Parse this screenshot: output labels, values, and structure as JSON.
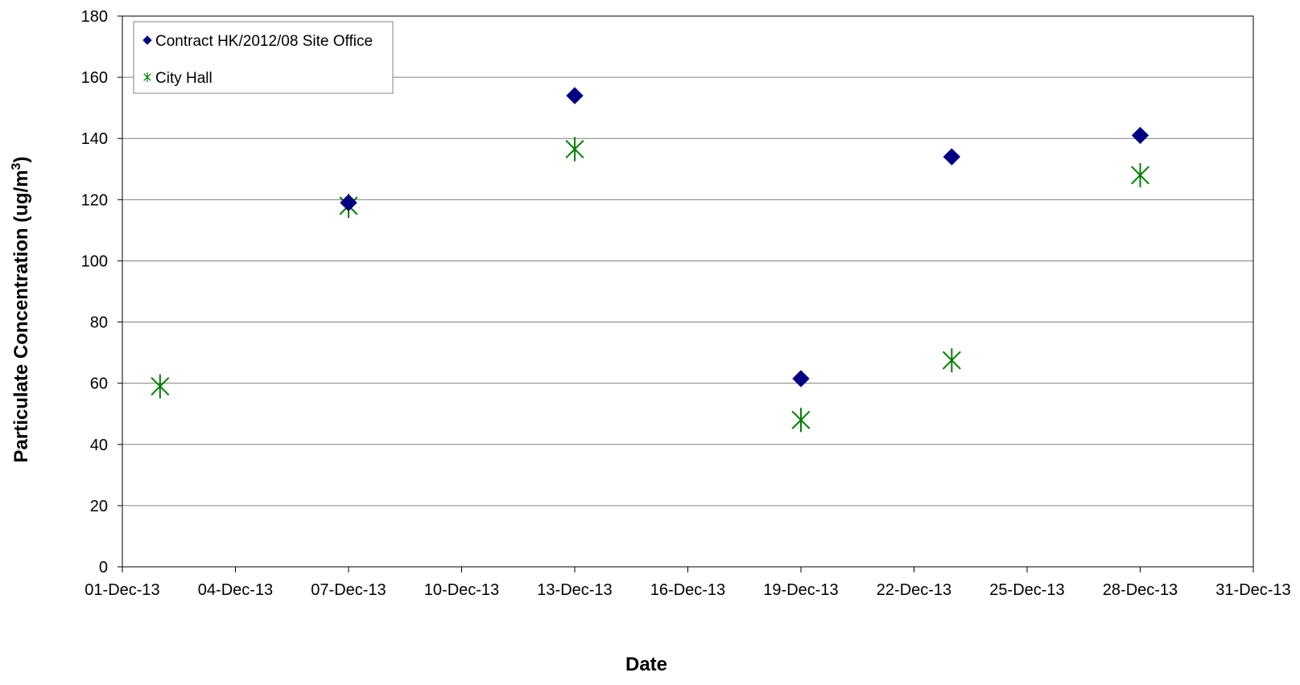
{
  "chart_data": {
    "type": "scatter",
    "title": "",
    "xlabel": "Date",
    "ylabel_main": "Particulate Concentration (ug/m",
    "ylabel_sup": "3",
    "ylabel_close": ")",
    "xlim": [
      "01-Dec-13",
      "31-Dec-13"
    ],
    "ylim": [
      0,
      180
    ],
    "x_ticks": [
      "01-Dec-13",
      "04-Dec-13",
      "07-Dec-13",
      "10-Dec-13",
      "13-Dec-13",
      "16-Dec-13",
      "19-Dec-13",
      "22-Dec-13",
      "25-Dec-13",
      "28-Dec-13",
      "31-Dec-13"
    ],
    "y_ticks": [
      0,
      20,
      40,
      60,
      80,
      100,
      120,
      140,
      160,
      180
    ],
    "grid": "horizontal",
    "legend_position": "top-left",
    "series": [
      {
        "name": "Contract HK/2012/08 Site Office",
        "marker": "diamond",
        "color": "#000080",
        "points": [
          {
            "x": "07-Dec-13",
            "y": 119
          },
          {
            "x": "13-Dec-13",
            "y": 154
          },
          {
            "x": "19-Dec-13",
            "y": 61.5
          },
          {
            "x": "23-Dec-13",
            "y": 134
          },
          {
            "x": "28-Dec-13",
            "y": 141
          }
        ]
      },
      {
        "name": "City Hall",
        "marker": "star",
        "color": "#008000",
        "points": [
          {
            "x": "02-Dec-13",
            "y": 59
          },
          {
            "x": "07-Dec-13",
            "y": 118
          },
          {
            "x": "13-Dec-13",
            "y": 136.5
          },
          {
            "x": "19-Dec-13",
            "y": 48
          },
          {
            "x": "23-Dec-13",
            "y": 67.5
          },
          {
            "x": "28-Dec-13",
            "y": 128
          }
        ]
      }
    ]
  }
}
